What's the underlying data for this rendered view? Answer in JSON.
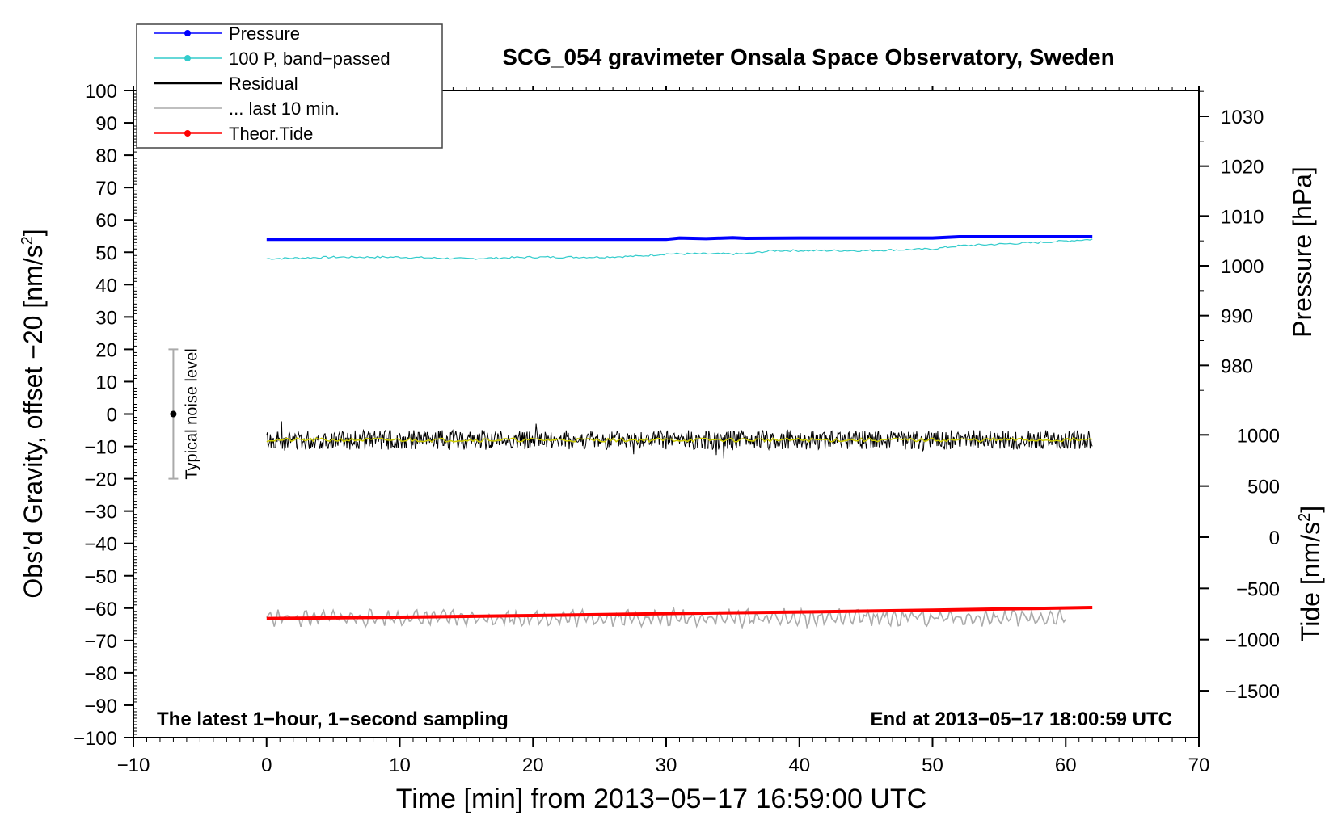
{
  "chart_data": {
    "type": "line",
    "title": "SCG_054 gravimeter Onsala Space Observatory, Sweden",
    "xlabel": "Time [min] from 2013−05−17 16:59:00 UTC",
    "xlim": [
      -10,
      70
    ],
    "xticks": [
      -10,
      0,
      10,
      20,
      30,
      40,
      50,
      60,
      70
    ],
    "xtick_labels": [
      "−10",
      "0",
      "10",
      "20",
      "30",
      "40",
      "50",
      "60",
      "70"
    ],
    "left_axis": {
      "label_main": "Obs’d Gravity, offset −20 [nm/s",
      "label_sup": "2",
      "label_close": "]",
      "ylim": [
        -100,
        100
      ],
      "ticks": [
        100,
        90,
        80,
        70,
        60,
        50,
        40,
        30,
        20,
        10,
        0,
        -10,
        -20,
        -30,
        -40,
        -50,
        -60,
        -70,
        -80,
        -90,
        -100
      ],
      "tick_labels": [
        "100",
        "90",
        "80",
        "70",
        "60",
        "50",
        "40",
        "30",
        "20",
        "10",
        "0",
        "−10",
        "−20",
        "−30",
        "−40",
        "−50",
        "−60",
        "−70",
        "−80",
        "−90",
        "−100"
      ]
    },
    "pressure_axis": {
      "label": "Pressure [hPa]",
      "ticks": [
        1030,
        1020,
        1010,
        1000,
        990,
        980
      ],
      "tick_labels": [
        "1030",
        "1020",
        "1010",
        "1000",
        "990",
        "980"
      ]
    },
    "tide_axis": {
      "label_main": "Tide [nm/s",
      "label_sup": "2",
      "label_close": "]",
      "ticks": [
        1000,
        500,
        0,
        -500,
        -1000,
        -1500
      ],
      "tick_labels": [
        "1000",
        "500",
        "0",
        "−500",
        "−1000",
        "−1500"
      ]
    },
    "legend": {
      "placement": "top-left",
      "entries": [
        {
          "label": "Pressure",
          "color": "#0000ff",
          "marker": true
        },
        {
          "label": "100 P, band−passed",
          "color": "#33cccc",
          "marker": true
        },
        {
          "label": "Residual",
          "color": "#000000",
          "marker": false
        },
        {
          "label": "... last 10 min.",
          "color": "#aaaaaa",
          "marker": false
        },
        {
          "label": "Theor.Tide",
          "color": "#ff0000",
          "marker": true
        }
      ]
    },
    "annotations": {
      "noise_label": "Typical noise level",
      "noise_bar": {
        "x": -7,
        "y_low": -20,
        "y_high": 20,
        "y_center": 0
      },
      "bottom_left": "The latest 1−hour, 1−second sampling",
      "bottom_right": "End at 2013−05−17 18:00:59 UTC"
    },
    "colors": {
      "pressure": "#0000ff",
      "band_passed": "#33cccc",
      "residual": "#000000",
      "residual_smooth": "#cccc00",
      "last_10_min": "#aaaaaa",
      "tide": "#ff0000"
    },
    "series": [
      {
        "name": "Pressure",
        "x": [
          0,
          10,
          20,
          30,
          31,
          33,
          35,
          36,
          40,
          50,
          52,
          62
        ],
        "y": [
          54,
          54,
          54,
          54,
          54.4,
          54.2,
          54.5,
          54.3,
          54.4,
          54.4,
          54.8,
          54.8
        ]
      },
      {
        "name": "100 P, band−passed",
        "x": [
          0,
          5,
          10,
          15,
          20,
          25,
          28,
          30,
          32,
          34,
          36,
          38,
          40,
          45,
          50,
          52,
          55,
          58,
          60,
          62
        ],
        "y": [
          48,
          48.5,
          48.5,
          48,
          48.5,
          48.5,
          48.8,
          49.5,
          49.5,
          49.5,
          49.5,
          50.5,
          50.5,
          50.5,
          51,
          52,
          52.5,
          53,
          53.5,
          54
        ]
      },
      {
        "name": "Residual",
        "x": [
          0,
          62
        ],
        "y": [
          -8,
          -8
        ]
      },
      {
        "name": "... last 10 min.",
        "x": [
          0,
          60
        ],
        "y": [
          -63,
          -63
        ]
      },
      {
        "name": "Theor.Tide",
        "x": [
          0,
          10,
          20,
          30,
          40,
          50,
          62
        ],
        "y": [
          -63.2,
          -62.8,
          -62.3,
          -61.7,
          -61.2,
          -60.6,
          -59.8
        ]
      }
    ]
  }
}
